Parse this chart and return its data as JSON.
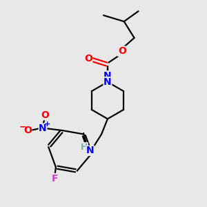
{
  "background_color": "#e8e8e8",
  "bond_color": "#000000",
  "atom_colors": {
    "O": "#ff0000",
    "N": "#0000ff",
    "F": "#cc44cc",
    "H": "#7aabab",
    "C": "#000000"
  },
  "figsize": [
    3.0,
    3.0
  ],
  "dpi": 100,
  "lw": 1.6,
  "fs": 10
}
